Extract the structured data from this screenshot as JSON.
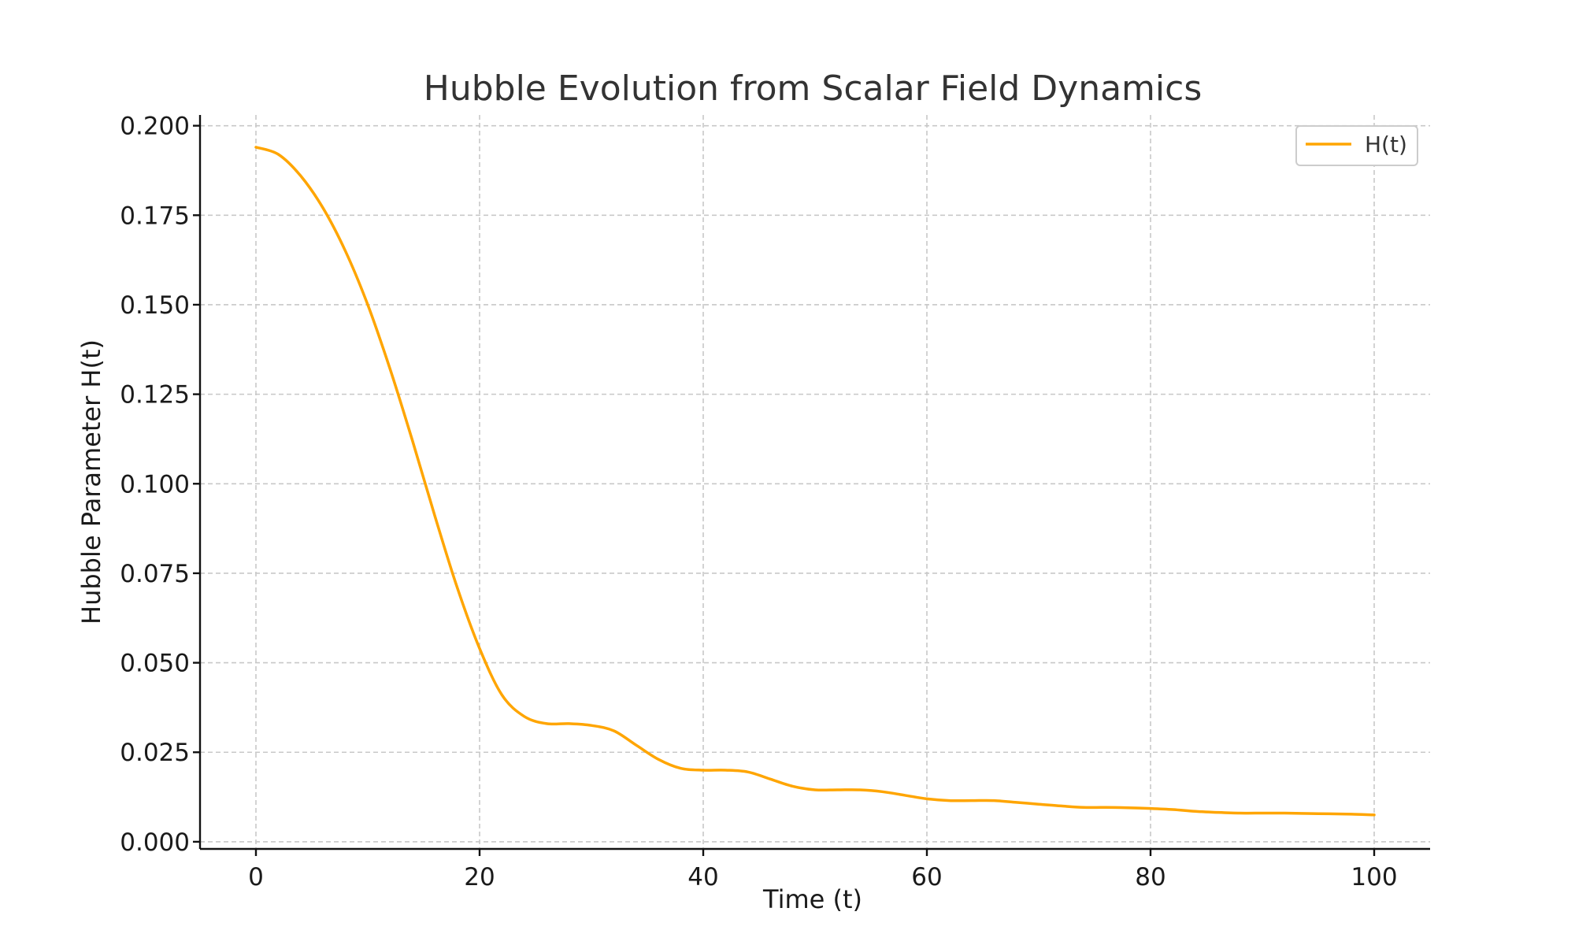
{
  "chart_data": {
    "type": "line",
    "title": "Hubble Evolution from Scalar Field Dynamics",
    "xlabel": "Time (t)",
    "ylabel": "Hubble Parameter H(t)",
    "xlim": [
      -5,
      105
    ],
    "ylim": [
      -0.002,
      0.203
    ],
    "x_ticks": [
      0,
      20,
      40,
      60,
      80,
      100
    ],
    "x_tick_labels": [
      "0",
      "20",
      "40",
      "60",
      "80",
      "100"
    ],
    "y_ticks": [
      0.0,
      0.025,
      0.05,
      0.075,
      0.1,
      0.125,
      0.15,
      0.175,
      0.2
    ],
    "y_tick_labels": [
      "0.000",
      "0.025",
      "0.050",
      "0.075",
      "0.100",
      "0.125",
      "0.150",
      "0.175",
      "0.200"
    ],
    "grid": true,
    "legend": {
      "position": "top-right",
      "entries": [
        "H(t)"
      ]
    },
    "series": [
      {
        "name": "H(t)",
        "color": "#FFA500",
        "x": [
          0,
          2,
          4,
          6,
          8,
          10,
          12,
          14,
          16,
          18,
          20,
          22,
          24,
          26,
          28,
          30,
          32,
          34,
          36,
          38,
          40,
          42,
          44,
          46,
          48,
          50,
          52,
          54,
          56,
          58,
          60,
          62,
          64,
          66,
          68,
          70,
          72,
          74,
          76,
          78,
          80,
          82,
          84,
          86,
          88,
          90,
          92,
          94,
          96,
          98,
          100
        ],
        "y": [
          0.194,
          0.192,
          0.186,
          0.177,
          0.165,
          0.15,
          0.132,
          0.112,
          0.091,
          0.071,
          0.054,
          0.041,
          0.035,
          0.033,
          0.033,
          0.0325,
          0.031,
          0.027,
          0.023,
          0.0205,
          0.02,
          0.02,
          0.0195,
          0.0175,
          0.0155,
          0.0145,
          0.0145,
          0.0145,
          0.014,
          0.013,
          0.012,
          0.0115,
          0.0115,
          0.0115,
          0.011,
          0.0105,
          0.01,
          0.0096,
          0.0096,
          0.0095,
          0.0093,
          0.009,
          0.0085,
          0.0082,
          0.008,
          0.008,
          0.008,
          0.0079,
          0.0078,
          0.0077,
          0.0075
        ]
      }
    ]
  }
}
